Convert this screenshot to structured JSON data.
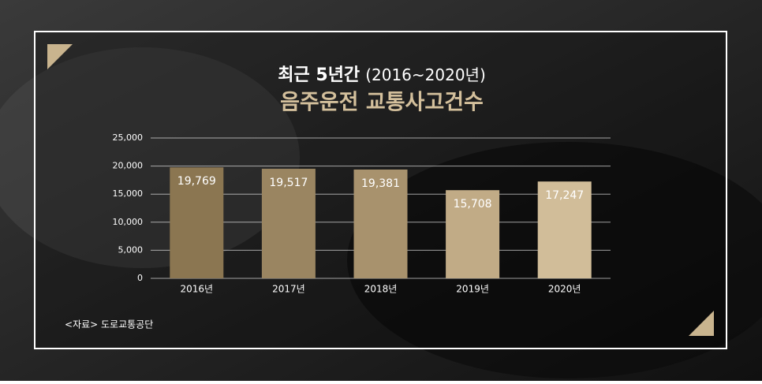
{
  "chart_data": {
    "type": "bar",
    "subtitle": "최근 5년간",
    "period": "(2016~2020년)",
    "title": "음주운전 교통사고건수",
    "source": "<자료> 도로교통공단",
    "categories": [
      "2016년",
      "2017년",
      "2018년",
      "2019년",
      "2020년"
    ],
    "values": [
      19769,
      19517,
      19381,
      15708,
      17247
    ],
    "value_labels": [
      "19,769",
      "19,517",
      "19,381",
      "15,708",
      "17,247"
    ],
    "colors": [
      "#8b7651",
      "#9a8561",
      "#a8926d",
      "#c1ab86",
      "#d1bd99"
    ],
    "ylim": [
      0,
      25000
    ],
    "yticks": [
      0,
      {
        "value": 5000,
        "label": "5,000"
      },
      {
        "value": 10000,
        "label": "10,000"
      },
      {
        "value": 15000,
        "label": "15,000"
      },
      {
        "value": 20000,
        "label": "20,000"
      },
      {
        "value": 25000,
        "label": "25,000"
      }
    ],
    "grid": true
  }
}
